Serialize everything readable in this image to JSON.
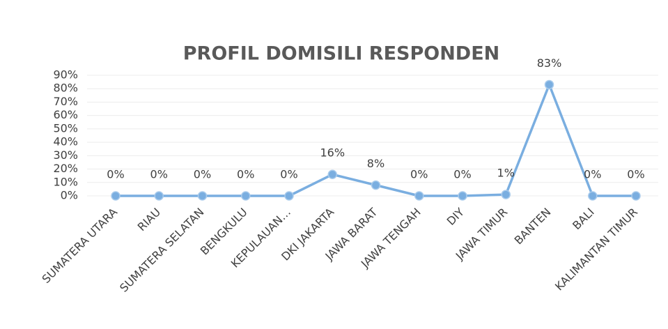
{
  "chart_data": {
    "type": "line",
    "title": "PROFIL DOMISILI RESPONDEN",
    "categories": [
      "SUMATERA UTARA",
      "RIAU",
      "SUMATERA SELATAN",
      "BENGKULU",
      "KEPULAUAN…",
      "DKI JAKARTA",
      "JAWA BARAT",
      "JAWA TENGAH",
      "DIY",
      "JAWA TIMUR",
      "BANTEN",
      "BALI",
      "KALIMANTAN TIMUR"
    ],
    "values": [
      0,
      0,
      0,
      0,
      0,
      16,
      8,
      0,
      0,
      1,
      83,
      0,
      0
    ],
    "value_labels": [
      "0%",
      "0%",
      "0%",
      "0%",
      "0%",
      "16%",
      "8%",
      "0%",
      "0%",
      "1%",
      "83%",
      "0%",
      "0%"
    ],
    "color": "#7aaee0",
    "ylim": [
      0,
      90
    ],
    "yticks": [
      {
        "value": 0,
        "label": "0%"
      },
      {
        "value": 10,
        "label": "10%"
      },
      {
        "value": 20,
        "label": "20%"
      },
      {
        "value": 30,
        "label": "30%"
      },
      {
        "value": 40,
        "label": "40%"
      },
      {
        "value": 50,
        "label": "50%"
      },
      {
        "value": 60,
        "label": "60%"
      },
      {
        "value": 70,
        "label": "70%"
      },
      {
        "value": 80,
        "label": "80%"
      },
      {
        "value": 90,
        "label": "90%"
      }
    ],
    "grid": true
  }
}
